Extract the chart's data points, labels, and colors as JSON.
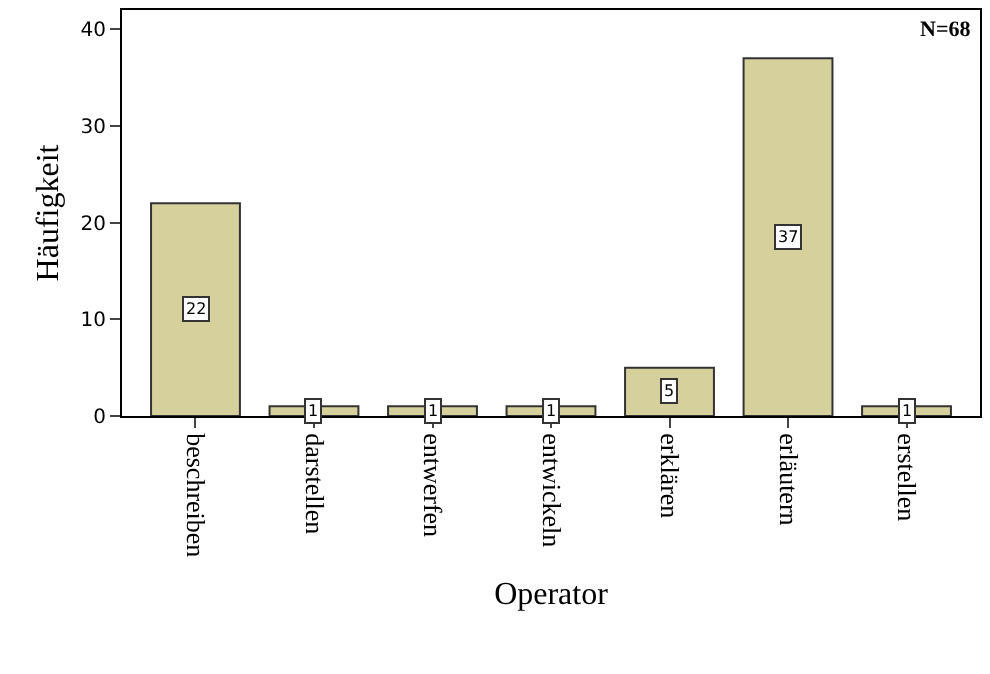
{
  "chart_data": {
    "type": "bar",
    "xlabel": "Operator",
    "ylabel": "Häufigkeit",
    "categories": [
      "beschreiben",
      "darstellen",
      "entwerfen",
      "entwickeln",
      "erklären",
      "erläutern",
      "erstellen"
    ],
    "values": [
      22,
      1,
      1,
      1,
      5,
      37,
      1
    ],
    "color": "#d5d09c",
    "ylim": [
      0,
      42
    ],
    "yticks": [
      0,
      10,
      20,
      30,
      40
    ],
    "data_labels": true,
    "annotations": [
      "N=68"
    ]
  }
}
